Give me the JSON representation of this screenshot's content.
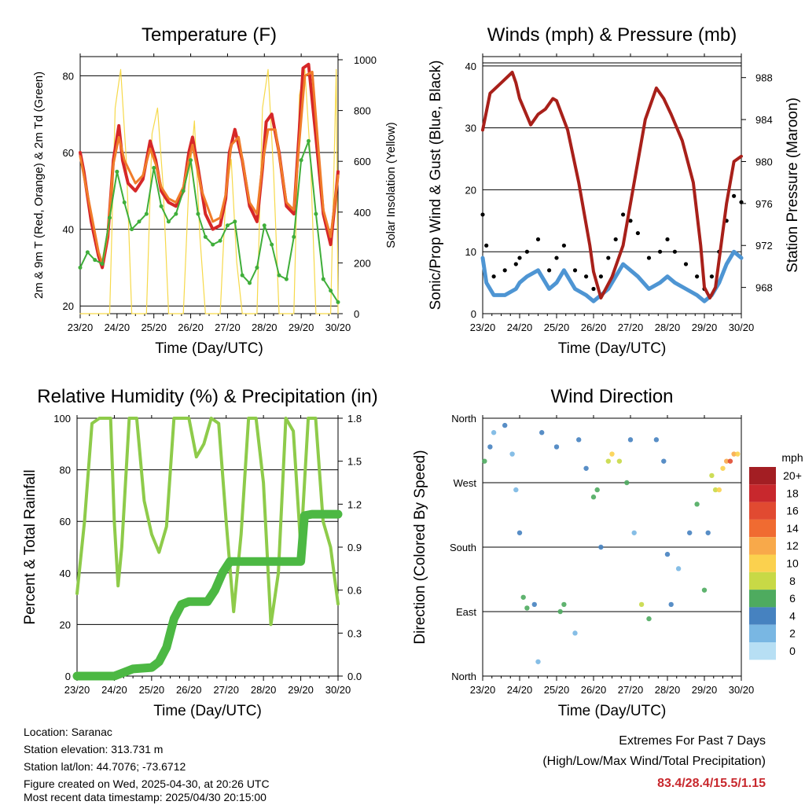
{
  "chart_data": [
    {
      "type": "line",
      "title": "Temperature (F)",
      "xlabel": "Time (Day/UTC)",
      "ylabel": "2m & 9m T (Red, Orange) & 2m Td (Green)",
      "ylabel_right": "Solar Insolation (Yellow)",
      "xticks": [
        "23/20",
        "24/20",
        "25/20",
        "26/20",
        "27/20",
        "28/20",
        "29/20",
        "30/20"
      ],
      "ylim": [
        18,
        85
      ],
      "yticks": [
        20,
        40,
        60,
        80
      ],
      "ylim_right": [
        0,
        1000
      ],
      "yticks_right": [
        0,
        200,
        400,
        600,
        800,
        1000
      ],
      "series": [
        {
          "name": "2m T",
          "color": "#d62728",
          "x": [
            0,
            0.1,
            0.3,
            0.5,
            0.6,
            0.75,
            0.9,
            1.05,
            1.15,
            1.3,
            1.5,
            1.7,
            1.9,
            2.05,
            2.2,
            2.4,
            2.6,
            2.8,
            2.95,
            3.05,
            3.2,
            3.4,
            3.6,
            3.8,
            3.95,
            4.05,
            4.2,
            4.4,
            4.6,
            4.8,
            4.95,
            5.05,
            5.2,
            5.4,
            5.6,
            5.8,
            5.95,
            6.05,
            6.2,
            6.4,
            6.6,
            6.8,
            6.95,
            7.0
          ],
          "y": [
            60,
            55,
            42,
            33,
            30,
            38,
            58,
            67,
            58,
            52,
            50,
            53,
            63,
            58,
            50,
            47,
            46,
            50,
            60,
            64,
            56,
            44,
            40,
            41,
            48,
            60,
            66,
            58,
            46,
            42,
            56,
            68,
            70,
            60,
            46,
            44,
            66,
            82,
            83,
            64,
            44,
            36,
            50,
            55
          ]
        },
        {
          "name": "9m T",
          "color": "#f07c2a",
          "x": [
            0,
            0.3,
            0.5,
            0.6,
            0.75,
            0.9,
            1.05,
            1.2,
            1.5,
            1.7,
            1.9,
            2.05,
            2.2,
            2.4,
            2.6,
            2.8,
            2.95,
            3.05,
            3.3,
            3.6,
            3.8,
            3.95,
            4.1,
            4.3,
            4.6,
            4.8,
            4.95,
            5.1,
            5.3,
            5.6,
            5.8,
            5.95,
            6.1,
            6.3,
            6.6,
            6.8,
            6.95,
            7.0
          ],
          "y": [
            59,
            44,
            34,
            31,
            39,
            57,
            64,
            58,
            52,
            54,
            61,
            57,
            51,
            48,
            47,
            51,
            58,
            62,
            50,
            42,
            43,
            49,
            62,
            64,
            47,
            44,
            57,
            66,
            66,
            47,
            45,
            63,
            80,
            81,
            45,
            38,
            50,
            54
          ]
        },
        {
          "name": "2m Td",
          "color": "#3fae3a",
          "x": [
            0,
            0.2,
            0.4,
            0.6,
            0.8,
            1.0,
            1.2,
            1.4,
            1.6,
            1.8,
            2.0,
            2.2,
            2.4,
            2.6,
            2.8,
            3.0,
            3.2,
            3.4,
            3.6,
            3.8,
            4.0,
            4.2,
            4.4,
            4.6,
            4.8,
            5.0,
            5.2,
            5.4,
            5.6,
            5.8,
            6.0,
            6.2,
            6.4,
            6.6,
            6.8,
            7.0
          ],
          "y": [
            30,
            34,
            32,
            31,
            43,
            55,
            47,
            40,
            42,
            44,
            56,
            46,
            42,
            44,
            50,
            58,
            44,
            38,
            36,
            37,
            41,
            42,
            28,
            26,
            30,
            41,
            36,
            28,
            27,
            38,
            58,
            63,
            44,
            27,
            24,
            21
          ]
        },
        {
          "name": "Solar Insolation",
          "color": "#f6d94a",
          "axis": "right",
          "x": [
            0,
            0.8,
            0.95,
            1.1,
            1.25,
            1.4,
            1.8,
            1.95,
            2.1,
            2.25,
            2.4,
            2.8,
            2.95,
            3.1,
            3.25,
            3.4,
            3.8,
            3.95,
            4.1,
            4.25,
            4.4,
            4.8,
            4.95,
            5.1,
            5.25,
            5.4,
            5.8,
            5.95,
            6.1,
            6.25,
            6.4,
            6.8,
            6.95,
            7.0
          ],
          "y": [
            0,
            0,
            800,
            950,
            600,
            0,
            0,
            700,
            800,
            500,
            0,
            0,
            500,
            750,
            300,
            0,
            0,
            450,
            600,
            200,
            0,
            0,
            800,
            950,
            550,
            0,
            0,
            850,
            950,
            600,
            0,
            0,
            950,
            0
          ]
        }
      ]
    },
    {
      "type": "scatter",
      "title": "Winds (mph) & Pressure (mb)",
      "xlabel": "Time (Day/UTC)",
      "ylabel": "Sonic/Prop Wind & Gust (Blue, Black)",
      "ylabel_right": "Station Pressure (Maroon)",
      "xticks": [
        "23/20",
        "24/20",
        "25/20",
        "26/20",
        "27/20",
        "28/20",
        "29/20",
        "30/20"
      ],
      "ylim": [
        0,
        41.5
      ],
      "yticks": [
        0,
        10,
        20,
        30,
        40
      ],
      "ylim_right": [
        965.5,
        990
      ],
      "yticks_right": [
        968,
        972,
        976,
        980,
        984,
        988
      ],
      "series": [
        {
          "name": "Station Pressure",
          "color": "#a8201a",
          "axis": "right",
          "mode": "line",
          "x": [
            0,
            0.2,
            0.5,
            0.8,
            0.9,
            1.0,
            1.3,
            1.5,
            1.7,
            1.9,
            2.0,
            2.3,
            2.6,
            2.9,
            3.0,
            3.2,
            3.5,
            3.8,
            4.1,
            4.4,
            4.7,
            4.9,
            5.1,
            5.4,
            5.7,
            5.9,
            6.0,
            6.15,
            6.3,
            6.6,
            6.8,
            7.0
          ],
          "y": [
            983,
            986.5,
            987.5,
            988.5,
            987.5,
            986,
            983.5,
            984.5,
            985,
            986,
            985.8,
            983,
            978,
            972,
            969.5,
            967,
            969,
            972,
            978,
            984,
            987,
            986,
            984.5,
            982,
            978,
            972,
            968,
            967,
            968,
            976,
            980,
            980.5
          ]
        },
        {
          "name": "Sonic/Prop Wind",
          "color": "#4e95d3",
          "mode": "line",
          "x": [
            0,
            0.1,
            0.3,
            0.6,
            0.9,
            1.0,
            1.2,
            1.5,
            1.8,
            2.0,
            2.2,
            2.5,
            2.8,
            3.0,
            3.2,
            3.4,
            3.6,
            3.8,
            4.0,
            4.2,
            4.5,
            4.8,
            5.0,
            5.2,
            5.5,
            5.8,
            6.0,
            6.2,
            6.4,
            6.6,
            6.8,
            7.0
          ],
          "y": [
            9,
            5,
            3,
            3,
            4,
            5,
            6,
            7,
            4,
            5,
            7,
            4,
            3,
            2,
            3,
            4,
            6,
            8,
            7,
            6,
            4,
            5,
            6,
            5,
            4,
            3,
            2,
            3,
            5,
            8,
            10,
            9
          ]
        },
        {
          "name": "Gust",
          "color": "#000000",
          "mode": "points",
          "x": [
            0,
            0.1,
            0.3,
            0.6,
            0.9,
            1.0,
            1.2,
            1.5,
            1.8,
            2.0,
            2.2,
            2.5,
            2.8,
            3.0,
            3.2,
            3.4,
            3.6,
            3.8,
            4.0,
            4.2,
            4.5,
            4.8,
            5.0,
            5.2,
            5.5,
            5.8,
            6.0,
            6.2,
            6.4,
            6.6,
            6.8,
            7.0
          ],
          "y": [
            16,
            11,
            6,
            7,
            8,
            9,
            10,
            12,
            7,
            9,
            11,
            7,
            6,
            4,
            6,
            9,
            12,
            16,
            15,
            13,
            9,
            10,
            12,
            10,
            8,
            6,
            4,
            6,
            10,
            15,
            19,
            18
          ]
        }
      ]
    },
    {
      "type": "line",
      "title": "Relative Humidity (%) & Precipitation (in)",
      "xlabel": "Time (Day/UTC)",
      "ylabel": "Percent & Total Rainfall",
      "xticks": [
        "23/20",
        "24/20",
        "25/20",
        "26/20",
        "27/20",
        "28/20",
        "29/20",
        "30/20"
      ],
      "ylim": [
        0,
        100
      ],
      "yticks": [
        0,
        20,
        40,
        60,
        80,
        100
      ],
      "ylim_right": [
        0,
        1.8
      ],
      "yticks_right": [
        "0.0",
        "0.3",
        "0.6",
        "0.9",
        "1.2",
        "1.5",
        "1.8"
      ],
      "series": [
        {
          "name": "Relative Humidity",
          "color": "#8ecb4a",
          "x": [
            0,
            0.2,
            0.4,
            0.6,
            0.9,
            1.0,
            1.1,
            1.2,
            1.4,
            1.6,
            1.8,
            2.0,
            2.2,
            2.4,
            2.6,
            2.8,
            3.0,
            3.2,
            3.4,
            3.6,
            3.8,
            4.0,
            4.2,
            4.4,
            4.6,
            4.8,
            5.0,
            5.2,
            5.4,
            5.6,
            5.8,
            6.0,
            6.2,
            6.4,
            6.6,
            6.8,
            7.0
          ],
          "y": [
            32,
            60,
            98,
            100,
            100,
            60,
            35,
            50,
            100,
            100,
            68,
            55,
            48,
            58,
            100,
            100,
            100,
            85,
            90,
            100,
            98,
            60,
            25,
            55,
            100,
            100,
            75,
            20,
            40,
            100,
            95,
            50,
            100,
            100,
            60,
            50,
            28
          ]
        },
        {
          "name": "Total Precipitation",
          "color": "#4cb843",
          "axis": "right",
          "x": [
            0,
            1.0,
            1.2,
            1.5,
            2.0,
            2.2,
            2.4,
            2.6,
            2.8,
            3.0,
            3.2,
            3.5,
            3.7,
            3.9,
            4.1,
            5.0,
            6.0,
            6.1,
            6.3,
            7.0
          ],
          "y": [
            0,
            0,
            0.02,
            0.05,
            0.06,
            0.1,
            0.2,
            0.4,
            0.5,
            0.52,
            0.52,
            0.52,
            0.6,
            0.72,
            0.8,
            0.8,
            0.8,
            1.12,
            1.13,
            1.13
          ]
        }
      ]
    },
    {
      "type": "scatter",
      "title": "Wind Direction",
      "xlabel": "Time (Day/UTC)",
      "ylabel": "Direction (Colored By Speed)",
      "xticks": [
        "23/20",
        "24/20",
        "25/20",
        "26/20",
        "27/20",
        "28/20",
        "29/20",
        "30/20"
      ],
      "yticks": [
        "North",
        "East",
        "South",
        "West",
        "North"
      ],
      "ylim": [
        0,
        360
      ],
      "colorbar_title": "mph",
      "colorbar": [
        {
          "label": "20+",
          "color": "#a31e23"
        },
        {
          "label": "18",
          "color": "#c8282d"
        },
        {
          "label": "16",
          "color": "#e14a31"
        },
        {
          "label": "14",
          "color": "#f06b31"
        },
        {
          "label": "12",
          "color": "#f8a94a"
        },
        {
          "label": "10",
          "color": "#fbd14e"
        },
        {
          "label": "8",
          "color": "#c8d946"
        },
        {
          "label": "6",
          "color": "#4eab5f"
        },
        {
          "label": "4",
          "color": "#4682c0"
        },
        {
          "label": "2",
          "color": "#79b7e3"
        },
        {
          "label": "0",
          "color": "#b7dff4"
        }
      ],
      "series": [
        {
          "name": "Direction",
          "x": [
            0.05,
            0.2,
            0.3,
            0.6,
            0.8,
            0.9,
            1.0,
            1.1,
            1.2,
            1.4,
            1.5,
            1.6,
            2.0,
            2.1,
            2.2,
            2.5,
            2.6,
            2.8,
            3.0,
            3.1,
            3.2,
            3.4,
            3.5,
            3.7,
            3.9,
            4.0,
            4.1,
            4.3,
            4.5,
            4.7,
            4.9,
            5.0,
            5.1,
            5.3,
            5.6,
            5.8,
            6.0,
            6.1,
            6.2,
            6.3,
            6.4,
            6.5,
            6.6,
            6.7,
            6.8,
            6.9
          ],
          "y": [
            300,
            320,
            340,
            350,
            310,
            260,
            200,
            110,
            95,
            100,
            20,
            340,
            320,
            90,
            100,
            60,
            330,
            290,
            250,
            260,
            180,
            300,
            310,
            300,
            270,
            330,
            200,
            100,
            80,
            330,
            300,
            170,
            100,
            150,
            200,
            240,
            120,
            200,
            280,
            260,
            260,
            290,
            300,
            300,
            310,
            310
          ],
          "speed": [
            6,
            3,
            2,
            3,
            2,
            1,
            3,
            5,
            6,
            4,
            1,
            3,
            3,
            6,
            5,
            2,
            3,
            4,
            6,
            5,
            3,
            8,
            10,
            8,
            6,
            3,
            2,
            7,
            5,
            3,
            4,
            3,
            4,
            2,
            3,
            6,
            5,
            4,
            7,
            8,
            9,
            10,
            12,
            16,
            12,
            10
          ]
        }
      ]
    }
  ],
  "footer": {
    "location": "Location: Saranac",
    "elevation": "Station elevation: 313.731 m",
    "latlon": "Station lat/lon: 44.7076; -73.6712",
    "created": "Figure created on Wed, 2025-04-30, at 20:26 UTC",
    "recent": "Most recent data timestamp: 2025/04/30 20:15:00"
  },
  "extremes": {
    "title": "Extremes For Past 7 Days",
    "subtitle": "(High/Low/Max Wind/Total Precipitation)",
    "values": "83.4/28.4/15.5/1.15"
  }
}
